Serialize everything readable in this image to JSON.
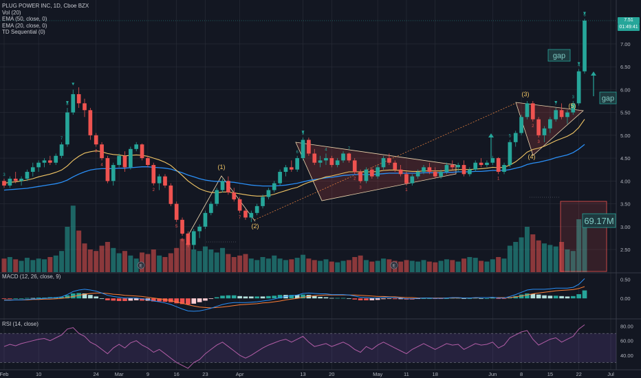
{
  "header": {
    "symbol_line": "PLUG POWER INC, 1D, Cboe BZX",
    "indicators": [
      "Vol (20)",
      "EMA (50, close, 0)",
      "EMA (20, close, 0)",
      "TD Sequential (0)"
    ]
  },
  "macd_label": "MACD (12, 26, close, 9)",
  "rsi_label": "RSI (14, close)",
  "price_tags": {
    "last": "7.51",
    "timer": "01:49:41"
  },
  "annotations": {
    "gap1": "gap",
    "gap2": "gap",
    "volume_box": "69.17M",
    "wave1": "(1)",
    "wave2": "(2)",
    "wave3": "(3)",
    "wave4": "(4)",
    "wave5": "(5)",
    "earnings": "E"
  },
  "colors": {
    "up": "#26a69a",
    "down": "#ef5350",
    "ema20": "#f3c766",
    "ema50": "#2a8ff7",
    "macd": "#2a8ff7",
    "signal": "#ff7f36",
    "rsi": "#b45ea8",
    "bg": "#131722",
    "grid": "#2a2e39"
  },
  "chart_data": {
    "type": "candlestick",
    "title": "PLUG POWER INC, 1D, Cboe BZX",
    "x_labels": [
      "Feb",
      "10",
      "24",
      "Mar",
      "9",
      "16",
      "23",
      "Apr",
      "13",
      "20",
      "May",
      "11",
      "18",
      "Jun",
      "8",
      "15",
      "22",
      "Jul"
    ],
    "y_ticks_price": [
      "7.00",
      "6.50",
      "6.00",
      "5.50",
      "5.00",
      "4.50",
      "4.00",
      "3.50",
      "3.00",
      "2.50"
    ],
    "y_ticks_macd": [
      "0.50",
      "0.00"
    ],
    "y_ticks_rsi": [
      "80.00",
      "60.00",
      "40.00"
    ],
    "ylim_price": [
      2.1,
      7.9
    ],
    "candles": [
      [
        4.0,
        4.05,
        3.85,
        3.9
      ],
      [
        3.9,
        4.1,
        3.85,
        4.05
      ],
      [
        4.05,
        4.2,
        3.95,
        4.0
      ],
      [
        4.0,
        4.1,
        3.9,
        4.05
      ],
      [
        4.05,
        4.25,
        4.0,
        4.2
      ],
      [
        4.2,
        4.4,
        4.1,
        4.3
      ],
      [
        4.3,
        4.45,
        4.2,
        4.4
      ],
      [
        4.4,
        4.5,
        4.3,
        4.45
      ],
      [
        4.45,
        4.55,
        4.35,
        4.4
      ],
      [
        4.4,
        4.6,
        4.35,
        4.55
      ],
      [
        4.55,
        4.85,
        4.5,
        4.8
      ],
      [
        4.8,
        5.6,
        4.75,
        5.5
      ],
      [
        5.5,
        6.0,
        5.45,
        5.9
      ],
      [
        5.9,
        6.05,
        5.6,
        5.7
      ],
      [
        5.7,
        5.8,
        5.4,
        5.55
      ],
      [
        5.55,
        5.6,
        4.9,
        5.0
      ],
      [
        5.0,
        5.05,
        4.75,
        4.8
      ],
      [
        4.8,
        4.85,
        4.45,
        4.5
      ],
      [
        4.5,
        4.55,
        3.95,
        4.0
      ],
      [
        4.0,
        4.4,
        3.9,
        4.35
      ],
      [
        4.35,
        4.6,
        4.3,
        4.55
      ],
      [
        4.55,
        4.65,
        4.2,
        4.3
      ],
      [
        4.3,
        4.75,
        4.25,
        4.7
      ],
      [
        4.7,
        4.85,
        4.65,
        4.8
      ],
      [
        4.8,
        4.82,
        4.45,
        4.5
      ],
      [
        4.5,
        4.55,
        4.3,
        4.35
      ],
      [
        4.35,
        4.4,
        3.9,
        3.95
      ],
      [
        3.95,
        4.15,
        3.8,
        4.1
      ],
      [
        4.1,
        4.15,
        3.85,
        3.9
      ],
      [
        3.9,
        3.95,
        3.45,
        3.5
      ],
      [
        3.5,
        3.55,
        3.1,
        3.15
      ],
      [
        3.15,
        3.2,
        2.8,
        2.85
      ],
      [
        2.85,
        2.9,
        2.55,
        2.6
      ],
      [
        2.6,
        2.95,
        2.5,
        2.9
      ],
      [
        2.9,
        3.05,
        2.75,
        3.0
      ],
      [
        3.0,
        3.35,
        2.95,
        3.3
      ],
      [
        3.3,
        3.55,
        3.25,
        3.5
      ],
      [
        3.5,
        3.85,
        3.45,
        3.8
      ],
      [
        3.8,
        4.05,
        3.75,
        4.0
      ],
      [
        4.0,
        4.1,
        3.7,
        3.75
      ],
      [
        3.75,
        3.85,
        3.55,
        3.6
      ],
      [
        3.6,
        3.65,
        3.3,
        3.35
      ],
      [
        3.35,
        3.4,
        3.15,
        3.2
      ],
      [
        3.2,
        3.35,
        3.1,
        3.3
      ],
      [
        3.3,
        3.5,
        3.25,
        3.45
      ],
      [
        3.45,
        3.7,
        3.4,
        3.65
      ],
      [
        3.65,
        3.85,
        3.6,
        3.8
      ],
      [
        3.8,
        4.0,
        3.75,
        3.95
      ],
      [
        3.95,
        4.25,
        3.9,
        4.2
      ],
      [
        4.2,
        4.35,
        4.1,
        4.3
      ],
      [
        4.3,
        4.45,
        4.2,
        4.25
      ],
      [
        4.25,
        4.55,
        4.2,
        4.5
      ],
      [
        4.5,
        4.95,
        4.45,
        4.9
      ],
      [
        4.9,
        4.95,
        4.55,
        4.6
      ],
      [
        4.6,
        4.7,
        4.35,
        4.4
      ],
      [
        4.4,
        4.55,
        4.3,
        4.45
      ],
      [
        4.45,
        4.6,
        4.35,
        4.5
      ],
      [
        4.5,
        4.55,
        4.3,
        4.35
      ],
      [
        4.35,
        4.5,
        4.3,
        4.45
      ],
      [
        4.45,
        4.65,
        4.4,
        4.6
      ],
      [
        4.6,
        4.62,
        4.4,
        4.45
      ],
      [
        4.45,
        4.5,
        4.15,
        4.2
      ],
      [
        4.2,
        4.25,
        3.95,
        4.0
      ],
      [
        4.0,
        4.3,
        3.95,
        4.25
      ],
      [
        4.25,
        4.3,
        4.05,
        4.1
      ],
      [
        4.1,
        4.35,
        4.05,
        4.3
      ],
      [
        4.3,
        4.55,
        4.25,
        4.5
      ],
      [
        4.5,
        4.6,
        4.35,
        4.4
      ],
      [
        4.4,
        4.45,
        4.2,
        4.25
      ],
      [
        4.25,
        4.35,
        4.1,
        4.15
      ],
      [
        4.15,
        4.2,
        3.9,
        3.95
      ],
      [
        3.95,
        4.15,
        3.9,
        4.1
      ],
      [
        4.1,
        4.25,
        4.05,
        4.2
      ],
      [
        4.2,
        4.35,
        4.15,
        4.3
      ],
      [
        4.3,
        4.4,
        4.15,
        4.2
      ],
      [
        4.2,
        4.3,
        4.05,
        4.1
      ],
      [
        4.1,
        4.25,
        4.05,
        4.2
      ],
      [
        4.2,
        4.4,
        4.15,
        4.35
      ],
      [
        4.35,
        4.45,
        4.25,
        4.3
      ],
      [
        4.3,
        4.4,
        4.2,
        4.35
      ],
      [
        4.35,
        4.45,
        4.1,
        4.15
      ],
      [
        4.15,
        4.3,
        4.1,
        4.25
      ],
      [
        4.25,
        4.45,
        4.2,
        4.4
      ],
      [
        4.4,
        4.5,
        4.3,
        4.35
      ],
      [
        4.35,
        4.45,
        4.3,
        4.4
      ],
      [
        4.4,
        4.55,
        4.35,
        4.5
      ],
      [
        4.5,
        4.52,
        4.15,
        4.2
      ],
      [
        4.2,
        4.4,
        4.15,
        4.35
      ],
      [
        4.35,
        4.9,
        4.3,
        4.85
      ],
      [
        4.85,
        5.1,
        4.75,
        5.05
      ],
      [
        5.05,
        5.45,
        5.0,
        5.4
      ],
      [
        5.4,
        5.75,
        5.35,
        5.7
      ],
      [
        5.7,
        5.75,
        5.3,
        5.35
      ],
      [
        5.35,
        5.4,
        4.95,
        5.0
      ],
      [
        5.0,
        5.2,
        4.85,
        5.15
      ],
      [
        5.15,
        5.4,
        5.05,
        5.35
      ],
      [
        5.35,
        5.6,
        5.3,
        5.55
      ],
      [
        5.55,
        5.7,
        5.35,
        5.4
      ],
      [
        5.4,
        5.55,
        5.25,
        5.5
      ],
      [
        5.5,
        5.75,
        5.45,
        5.7
      ],
      [
        5.7,
        6.45,
        5.65,
        6.4
      ],
      [
        6.4,
        7.55,
        6.35,
        7.51
      ]
    ],
    "ema20": [
      3.95,
      3.97,
      3.98,
      4.0,
      4.02,
      4.05,
      4.09,
      4.12,
      4.15,
      4.19,
      4.24,
      4.33,
      4.45,
      4.54,
      4.61,
      4.64,
      4.66,
      4.64,
      4.6,
      4.58,
      4.57,
      4.55,
      4.56,
      4.57,
      4.56,
      4.54,
      4.5,
      4.46,
      4.41,
      4.34,
      4.23,
      4.12,
      4.0,
      3.91,
      3.83,
      3.78,
      3.75,
      3.74,
      3.76,
      3.76,
      3.74,
      3.72,
      3.7,
      3.68,
      3.67,
      3.67,
      3.68,
      3.71,
      3.75,
      3.79,
      3.83,
      3.86,
      3.92,
      3.97,
      4.01,
      4.05,
      4.09,
      4.11,
      4.14,
      4.17,
      4.2,
      4.2,
      4.2,
      4.2,
      4.2,
      4.21,
      4.23,
      4.24,
      4.24,
      4.23,
      4.22,
      4.21,
      4.21,
      4.22,
      4.22,
      4.22,
      4.22,
      4.23,
      4.24,
      4.25,
      4.25,
      4.25,
      4.26,
      4.27,
      4.28,
      4.3,
      4.29,
      4.3,
      4.35,
      4.42,
      4.52,
      4.63,
      4.69,
      4.72,
      4.76,
      4.82,
      4.88,
      4.93,
      4.98,
      5.05,
      5.17,
      5.35
    ],
    "ema50": [
      3.8,
      3.81,
      3.82,
      3.83,
      3.84,
      3.86,
      3.88,
      3.9,
      3.92,
      3.94,
      3.97,
      4.02,
      4.09,
      4.15,
      4.2,
      4.24,
      4.26,
      4.27,
      4.27,
      4.27,
      4.28,
      4.28,
      4.29,
      4.3,
      4.31,
      4.31,
      4.3,
      4.29,
      4.28,
      4.26,
      4.22,
      4.18,
      4.13,
      4.09,
      4.05,
      4.02,
      4.0,
      3.99,
      3.99,
      3.98,
      3.97,
      3.95,
      3.93,
      3.91,
      3.9,
      3.89,
      3.89,
      3.89,
      3.9,
      3.91,
      3.93,
      3.95,
      3.98,
      4.01,
      4.03,
      4.05,
      4.07,
      4.08,
      4.1,
      4.12,
      4.13,
      4.14,
      4.14,
      4.14,
      4.14,
      4.15,
      4.16,
      4.17,
      4.17,
      4.17,
      4.17,
      4.17,
      4.17,
      4.18,
      4.18,
      4.18,
      4.18,
      4.19,
      4.19,
      4.2,
      4.2,
      4.2,
      4.21,
      4.21,
      4.22,
      4.23,
      4.23,
      4.23,
      4.25,
      4.28,
      4.31,
      4.36,
      4.39,
      4.41,
      4.44,
      4.47,
      4.51,
      4.54,
      4.57,
      4.62,
      4.7,
      4.8
    ],
    "volume_ylim": [
      0,
      100
    ],
    "volume": [
      18,
      20,
      17,
      15,
      19,
      16,
      18,
      17,
      20,
      22,
      28,
      60,
      88,
      55,
      38,
      30,
      28,
      35,
      40,
      32,
      25,
      28,
      22,
      18,
      26,
      24,
      30,
      22,
      20,
      25,
      32,
      44,
      38,
      30,
      28,
      34,
      30,
      26,
      32,
      24,
      20,
      22,
      24,
      18,
      16,
      20,
      18,
      22,
      18,
      16,
      17,
      19,
      23,
      18,
      16,
      15,
      17,
      14,
      13,
      15,
      16,
      20,
      22,
      16,
      14,
      15,
      18,
      17,
      15,
      14,
      16,
      15,
      14,
      16,
      14,
      13,
      15,
      17,
      16,
      14,
      18,
      20,
      19,
      15,
      14,
      17,
      20,
      18,
      35,
      40,
      46,
      60,
      50,
      42,
      38,
      36,
      34,
      40,
      30,
      28,
      70,
      62
    ],
    "macd": [
      -0.05,
      -0.05,
      -0.04,
      -0.04,
      -0.03,
      -0.02,
      -0.01,
      0.0,
      0.01,
      0.02,
      0.04,
      0.1,
      0.18,
      0.22,
      0.24,
      0.22,
      0.19,
      0.14,
      0.08,
      0.05,
      0.03,
      0.01,
      0.01,
      0.01,
      -0.01,
      -0.03,
      -0.07,
      -0.09,
      -0.12,
      -0.16,
      -0.22,
      -0.28,
      -0.33,
      -0.34,
      -0.33,
      -0.3,
      -0.26,
      -0.21,
      -0.16,
      -0.13,
      -0.11,
      -0.11,
      -0.11,
      -0.1,
      -0.09,
      -0.07,
      -0.05,
      -0.02,
      0.02,
      0.05,
      0.07,
      0.09,
      0.13,
      0.14,
      0.13,
      0.12,
      0.12,
      0.1,
      0.1,
      0.1,
      0.09,
      0.06,
      0.03,
      0.02,
      0.01,
      0.01,
      0.03,
      0.03,
      0.02,
      0.01,
      -0.01,
      -0.01,
      0.0,
      0.01,
      0.01,
      0.0,
      0.0,
      0.01,
      0.02,
      0.02,
      0.01,
      0.01,
      0.02,
      0.02,
      0.02,
      0.03,
      0.01,
      0.01,
      0.05,
      0.1,
      0.16,
      0.22,
      0.24,
      0.24,
      0.24,
      0.25,
      0.27,
      0.27,
      0.27,
      0.29,
      0.37,
      0.52
    ],
    "signal": [
      -0.04,
      -0.04,
      -0.04,
      -0.04,
      -0.04,
      -0.03,
      -0.03,
      -0.02,
      -0.02,
      -0.01,
      0.0,
      0.02,
      0.05,
      0.08,
      0.11,
      0.13,
      0.14,
      0.14,
      0.13,
      0.11,
      0.1,
      0.08,
      0.07,
      0.06,
      0.05,
      0.03,
      0.01,
      -0.01,
      -0.03,
      -0.06,
      -0.09,
      -0.13,
      -0.17,
      -0.2,
      -0.23,
      -0.24,
      -0.25,
      -0.24,
      -0.23,
      -0.21,
      -0.19,
      -0.17,
      -0.16,
      -0.15,
      -0.14,
      -0.12,
      -0.11,
      -0.09,
      -0.07,
      -0.04,
      -0.02,
      0.0,
      0.03,
      0.05,
      0.07,
      0.08,
      0.09,
      0.09,
      0.09,
      0.09,
      0.09,
      0.09,
      0.08,
      0.07,
      0.06,
      0.05,
      0.05,
      0.04,
      0.04,
      0.03,
      0.02,
      0.02,
      0.01,
      0.01,
      0.01,
      0.01,
      0.01,
      0.01,
      0.01,
      0.01,
      0.01,
      0.01,
      0.01,
      0.02,
      0.02,
      0.02,
      0.02,
      0.02,
      0.02,
      0.04,
      0.06,
      0.09,
      0.12,
      0.14,
      0.16,
      0.18,
      0.2,
      0.21,
      0.22,
      0.23,
      0.26,
      0.31
    ],
    "rsi": [
      52,
      55,
      53,
      56,
      58,
      60,
      62,
      63,
      60,
      64,
      68,
      76,
      78,
      70,
      66,
      58,
      54,
      48,
      42,
      50,
      55,
      50,
      57,
      60,
      54,
      50,
      44,
      48,
      42,
      36,
      30,
      26,
      22,
      30,
      34,
      42,
      48,
      54,
      58,
      52,
      46,
      40,
      36,
      40,
      45,
      50,
      54,
      57,
      60,
      62,
      58,
      62,
      66,
      58,
      52,
      54,
      56,
      52,
      55,
      58,
      54,
      48,
      44,
      52,
      48,
      54,
      58,
      54,
      50,
      46,
      42,
      48,
      52,
      56,
      52,
      48,
      52,
      56,
      54,
      55,
      48,
      52,
      56,
      54,
      55,
      58,
      50,
      54,
      64,
      68,
      72,
      74,
      62,
      54,
      58,
      62,
      64,
      58,
      62,
      66,
      76,
      82
    ],
    "rsi_ylim": [
      20,
      90
    ],
    "macd_ylim": [
      -0.45,
      0.6
    ]
  }
}
